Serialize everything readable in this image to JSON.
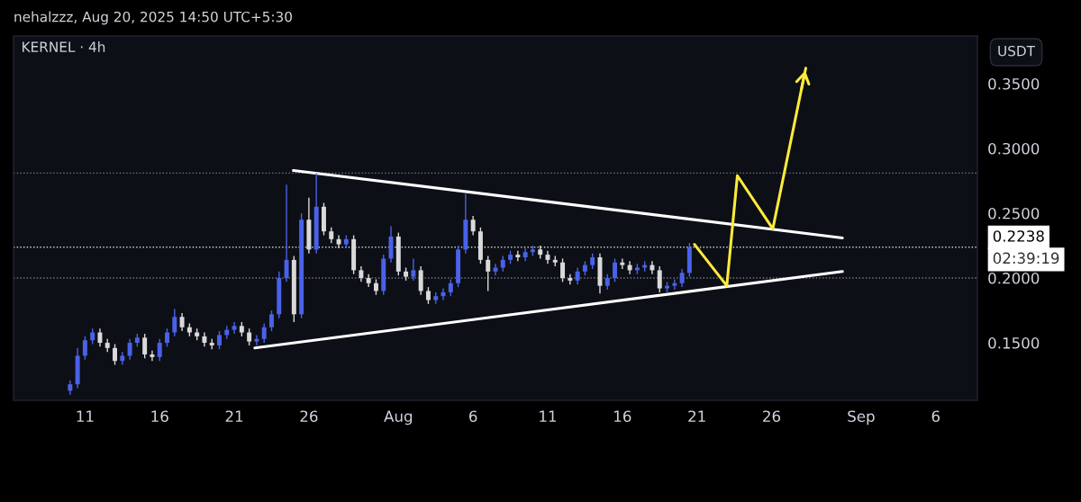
{
  "chart_data": {
    "type": "candlestick",
    "title": "KERNEL · 4h",
    "subtitle": "nehalzzz, Aug 20, 2025 14:50 UTC+5:30",
    "ylabel": "USDT",
    "colors": [
      "#4a62e8",
      "#4a62e8",
      "#4a62e8",
      "#4a62e8",
      "#d9d9d9",
      "#d9d9d9",
      "#d9d9d9",
      "#4a62e8",
      "#4a62e8",
      "#4a62e8",
      "#d9d9d9",
      "#d9d9d9",
      "#4a62e8",
      "#4a62e8",
      "#4a62e8",
      "#d9d9d9",
      "#d9d9d9",
      "#d9d9d9",
      "#d9d9d9",
      "#d9d9d9",
      "#4a62e8",
      "#4a62e8",
      "#4a62e8",
      "#d9d9d9",
      "#d9d9d9",
      "#4a62e8",
      "#4a62e8",
      "#4a62e8",
      "#4a62e8",
      "#4a62e8",
      "#d9d9d9",
      "#4a62e8",
      "#d9d9d9",
      "#4a62e8",
      "#d9d9d9",
      "#d9d9d9",
      "#d9d9d9",
      "#4a62e8",
      "#d9d9d9",
      "#d9d9d9",
      "#d9d9d9",
      "#d9d9d9",
      "#4a62e8",
      "#4a62e8",
      "#d9d9d9",
      "#d9d9d9",
      "#4a62e8",
      "#d9d9d9",
      "#d9d9d9",
      "#4a62e8",
      "#4a62e8",
      "#4a62e8",
      "#4a62e8",
      "#4a62e8",
      "#d9d9d9",
      "#d9d9d9",
      "#d9d9d9",
      "#4a62e8",
      "#4a62e8",
      "#4a62e8",
      "#d9d9d9",
      "#4a62e8",
      "#4a62e8",
      "#d9d9d9",
      "#d9d9d9",
      "#d9d9d9",
      "#d9d9d9",
      "#d9d9d9",
      "#4a62e8",
      "#4a62e8",
      "#4a62e8",
      "#d9d9d9",
      "#4a62e8",
      "#4a62e8",
      "#d9d9d9",
      "#d9d9d9",
      "#4a62e8",
      "#4a62e8",
      "#d9d9d9",
      "#d9d9d9",
      "#4a62e8",
      "#4a62e8",
      "#4a62e8",
      "#4a62e8"
    ],
    "x": [
      "2025-07-10T00:00",
      "2025-07-10T12:00",
      "2025-07-11T00:00",
      "2025-07-11T12:00",
      "2025-07-12T00:00",
      "2025-07-12T12:00",
      "2025-07-13T00:00",
      "2025-07-13T12:00",
      "2025-07-14T00:00",
      "2025-07-14T12:00",
      "2025-07-15T00:00",
      "2025-07-15T12:00",
      "2025-07-16T00:00",
      "2025-07-16T12:00",
      "2025-07-17T00:00",
      "2025-07-17T12:00",
      "2025-07-18T00:00",
      "2025-07-18T12:00",
      "2025-07-19T00:00",
      "2025-07-19T12:00",
      "2025-07-20T00:00",
      "2025-07-20T12:00",
      "2025-07-21T00:00",
      "2025-07-21T12:00",
      "2025-07-22T00:00",
      "2025-07-22T12:00",
      "2025-07-23T00:00",
      "2025-07-23T12:00",
      "2025-07-24T00:00",
      "2025-07-24T12:00",
      "2025-07-25T00:00",
      "2025-07-25T12:00",
      "2025-07-26T00:00",
      "2025-07-26T12:00",
      "2025-07-27T00:00",
      "2025-07-27T12:00",
      "2025-07-28T00:00",
      "2025-07-28T12:00",
      "2025-07-29T00:00",
      "2025-07-29T12:00",
      "2025-07-30T00:00",
      "2025-07-30T12:00",
      "2025-07-31T00:00",
      "2025-07-31T12:00",
      "2025-08-01T00:00",
      "2025-08-01T12:00",
      "2025-08-02T00:00",
      "2025-08-02T12:00",
      "2025-08-03T00:00",
      "2025-08-03T12:00",
      "2025-08-04T00:00",
      "2025-08-04T12:00",
      "2025-08-05T00:00",
      "2025-08-05T12:00",
      "2025-08-06T00:00",
      "2025-08-06T12:00",
      "2025-08-07T00:00",
      "2025-08-07T12:00",
      "2025-08-08T00:00",
      "2025-08-08T12:00",
      "2025-08-09T00:00",
      "2025-08-09T12:00",
      "2025-08-10T00:00",
      "2025-08-10T12:00",
      "2025-08-11T00:00",
      "2025-08-11T12:00",
      "2025-08-12T00:00",
      "2025-08-12T12:00",
      "2025-08-13T00:00",
      "2025-08-13T12:00",
      "2025-08-14T00:00",
      "2025-08-14T12:00",
      "2025-08-15T00:00",
      "2025-08-15T12:00",
      "2025-08-16T00:00",
      "2025-08-16T12:00",
      "2025-08-17T00:00",
      "2025-08-17T12:00",
      "2025-08-18T00:00",
      "2025-08-18T12:00",
      "2025-08-19T00:00",
      "2025-08-19T12:00",
      "2025-08-20T00:00",
      "2025-08-20T12:00"
    ],
    "ohlc": [
      [
        0.113,
        0.121,
        0.11,
        0.118
      ],
      [
        0.118,
        0.146,
        0.115,
        0.14
      ],
      [
        0.14,
        0.155,
        0.137,
        0.152
      ],
      [
        0.152,
        0.161,
        0.149,
        0.158
      ],
      [
        0.158,
        0.161,
        0.147,
        0.15
      ],
      [
        0.15,
        0.153,
        0.143,
        0.146
      ],
      [
        0.146,
        0.149,
        0.133,
        0.136
      ],
      [
        0.136,
        0.143,
        0.133,
        0.14
      ],
      [
        0.14,
        0.153,
        0.137,
        0.15
      ],
      [
        0.15,
        0.157,
        0.147,
        0.154
      ],
      [
        0.154,
        0.157,
        0.138,
        0.141
      ],
      [
        0.141,
        0.144,
        0.136,
        0.139
      ],
      [
        0.139,
        0.153,
        0.136,
        0.15
      ],
      [
        0.15,
        0.161,
        0.147,
        0.158
      ],
      [
        0.158,
        0.176,
        0.155,
        0.17
      ],
      [
        0.17,
        0.173,
        0.159,
        0.162
      ],
      [
        0.162,
        0.165,
        0.155,
        0.158
      ],
      [
        0.158,
        0.161,
        0.152,
        0.155
      ],
      [
        0.155,
        0.158,
        0.147,
        0.15
      ],
      [
        0.15,
        0.153,
        0.145,
        0.148
      ],
      [
        0.148,
        0.159,
        0.145,
        0.156
      ],
      [
        0.156,
        0.163,
        0.153,
        0.16
      ],
      [
        0.16,
        0.166,
        0.157,
        0.163
      ],
      [
        0.163,
        0.166,
        0.155,
        0.158
      ],
      [
        0.158,
        0.161,
        0.148,
        0.151
      ],
      [
        0.151,
        0.156,
        0.148,
        0.153
      ],
      [
        0.153,
        0.165,
        0.15,
        0.162
      ],
      [
        0.162,
        0.175,
        0.159,
        0.172
      ],
      [
        0.172,
        0.205,
        0.169,
        0.2
      ],
      [
        0.2,
        0.272,
        0.197,
        0.214
      ],
      [
        0.214,
        0.217,
        0.166,
        0.172
      ],
      [
        0.172,
        0.25,
        0.169,
        0.245
      ],
      [
        0.245,
        0.262,
        0.219,
        0.222
      ],
      [
        0.222,
        0.281,
        0.219,
        0.255
      ],
      [
        0.255,
        0.258,
        0.233,
        0.236
      ],
      [
        0.236,
        0.239,
        0.227,
        0.23
      ],
      [
        0.23,
        0.233,
        0.223,
        0.226
      ],
      [
        0.226,
        0.233,
        0.223,
        0.23
      ],
      [
        0.23,
        0.233,
        0.203,
        0.206
      ],
      [
        0.206,
        0.209,
        0.197,
        0.2
      ],
      [
        0.2,
        0.203,
        0.193,
        0.196
      ],
      [
        0.196,
        0.199,
        0.187,
        0.19
      ],
      [
        0.19,
        0.218,
        0.187,
        0.215
      ],
      [
        0.215,
        0.24,
        0.212,
        0.232
      ],
      [
        0.232,
        0.235,
        0.202,
        0.205
      ],
      [
        0.205,
        0.208,
        0.198,
        0.201
      ],
      [
        0.201,
        0.215,
        0.198,
        0.206
      ],
      [
        0.206,
        0.209,
        0.187,
        0.19
      ],
      [
        0.19,
        0.193,
        0.18,
        0.183
      ],
      [
        0.183,
        0.189,
        0.18,
        0.186
      ],
      [
        0.186,
        0.192,
        0.183,
        0.189
      ],
      [
        0.189,
        0.199,
        0.186,
        0.196
      ],
      [
        0.196,
        0.225,
        0.193,
        0.222
      ],
      [
        0.222,
        0.265,
        0.219,
        0.245
      ],
      [
        0.245,
        0.248,
        0.233,
        0.236
      ],
      [
        0.236,
        0.239,
        0.211,
        0.214
      ],
      [
        0.214,
        0.217,
        0.19,
        0.205
      ],
      [
        0.205,
        0.211,
        0.202,
        0.208
      ],
      [
        0.208,
        0.217,
        0.205,
        0.214
      ],
      [
        0.214,
        0.221,
        0.211,
        0.218
      ],
      [
        0.218,
        0.221,
        0.213,
        0.216
      ],
      [
        0.216,
        0.223,
        0.213,
        0.22
      ],
      [
        0.22,
        0.225,
        0.217,
        0.222
      ],
      [
        0.222,
        0.225,
        0.215,
        0.218
      ],
      [
        0.218,
        0.221,
        0.211,
        0.214
      ],
      [
        0.214,
        0.217,
        0.209,
        0.212
      ],
      [
        0.212,
        0.215,
        0.197,
        0.2
      ],
      [
        0.2,
        0.203,
        0.195,
        0.198
      ],
      [
        0.198,
        0.208,
        0.195,
        0.205
      ],
      [
        0.205,
        0.213,
        0.202,
        0.21
      ],
      [
        0.21,
        0.219,
        0.207,
        0.216
      ],
      [
        0.216,
        0.219,
        0.188,
        0.194
      ],
      [
        0.194,
        0.203,
        0.191,
        0.2
      ],
      [
        0.2,
        0.215,
        0.197,
        0.212
      ],
      [
        0.212,
        0.215,
        0.207,
        0.21
      ],
      [
        0.21,
        0.213,
        0.203,
        0.206
      ],
      [
        0.206,
        0.211,
        0.203,
        0.208
      ],
      [
        0.208,
        0.213,
        0.205,
        0.21
      ],
      [
        0.21,
        0.213,
        0.203,
        0.206
      ],
      [
        0.206,
        0.209,
        0.189,
        0.192
      ],
      [
        0.192,
        0.197,
        0.189,
        0.194
      ],
      [
        0.194,
        0.199,
        0.191,
        0.196
      ],
      [
        0.196,
        0.207,
        0.193,
        0.204
      ],
      [
        0.204,
        0.227,
        0.201,
        0.2238
      ]
    ],
    "series": [
      {
        "type": "line",
        "color": "#ffffff",
        "x": [
          "2025-07-24T23:00",
          "2025-08-30T18:00"
        ],
        "values": [
          0.283,
          0.231
        ]
      },
      {
        "type": "line",
        "color": "#ffffff",
        "x": [
          "2025-07-22T09:00",
          "2025-08-30T18:00"
        ],
        "values": [
          0.146,
          0.205
        ]
      },
      {
        "type": "line",
        "color": "#ffeb3b",
        "x": [
          "2025-08-20T20:00",
          "2025-08-23T00:00",
          "2025-08-23T17:00",
          "2025-08-26T02:00",
          "2025-08-28T07:00"
        ],
        "values": [
          0.226,
          0.194,
          0.279,
          0.238,
          0.362
        ]
      }
    ],
    "ref_lines": [
      {
        "axis": "y",
        "value": 0.281,
        "color": "#787b86",
        "line_style": "dotted"
      },
      {
        "axis": "y",
        "value": 0.2238,
        "label": "0.2238",
        "color": "#d1d4dc",
        "line_style": "dotted"
      },
      {
        "axis": "y",
        "value": 0.2,
        "color": "#787b86",
        "line_style": "dotted"
      }
    ],
    "annotations": [
      "02:39:19"
    ],
    "xlim": [
      "2025-07-06T05:00",
      "2025-09-08T19:00"
    ],
    "xticks": [
      {
        "value": "2025-07-11",
        "label": "11"
      },
      {
        "value": "2025-07-16",
        "label": "16"
      },
      {
        "value": "2025-07-21",
        "label": "21"
      },
      {
        "value": "2025-07-26",
        "label": "26"
      },
      {
        "value": "2025-08-01",
        "label": "Aug"
      },
      {
        "value": "2025-08-06",
        "label": "6"
      },
      {
        "value": "2025-08-11",
        "label": "11"
      },
      {
        "value": "2025-08-16",
        "label": "16"
      },
      {
        "value": "2025-08-21",
        "label": "21"
      },
      {
        "value": "2025-08-26",
        "label": "26"
      },
      {
        "value": "2025-09-01",
        "label": "Sep"
      },
      {
        "value": "2025-09-06",
        "label": "6"
      }
    ],
    "ylim": [
      0.1056,
      0.3868
    ],
    "yticks": [
      {
        "value": 0.15,
        "label": "0.1500"
      },
      {
        "value": 0.2,
        "label": "0.2000"
      },
      {
        "value": 0.25,
        "label": "0.2500"
      },
      {
        "value": 0.3,
        "label": "0.3000"
      },
      {
        "value": 0.35,
        "label": "0.3500"
      }
    ],
    "grid": false
  }
}
